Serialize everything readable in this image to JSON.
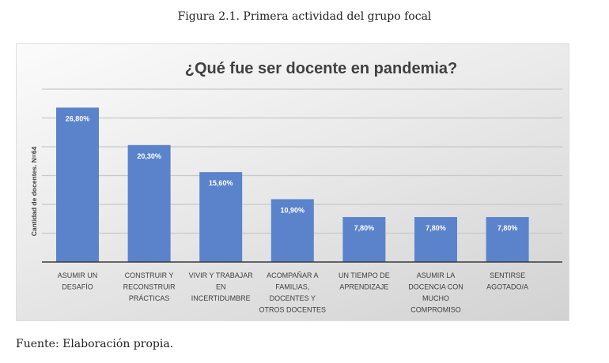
{
  "caption": "Figura 2.1. Primera actividad del grupo focal",
  "source": "Fuente: Elaboración propia.",
  "chart_data": {
    "type": "bar",
    "title": "¿Qué fue ser docente en pandemia?",
    "xlabel": "",
    "ylabel": "Cantidad de docentes. N=64",
    "ylim": [
      0,
      30
    ],
    "grid": true,
    "gridlines": [
      5,
      10,
      15,
      20,
      25,
      30
    ],
    "categories": [
      [
        "ASUMIR UN",
        "DESAFÍO"
      ],
      [
        "CONSTRUIR Y",
        "RECONSTRUIR",
        "PRÁCTICAS"
      ],
      [
        "VIVIR Y TRABAJAR",
        "EN",
        "INCERTIDUMBRE"
      ],
      [
        "ACOMPAÑAR A",
        "FAMILIAS,",
        "DOCENTES Y",
        "OTROS DOCENTES"
      ],
      [
        "UN TIEMPO DE",
        "APRENDIZAJE"
      ],
      [
        "ASUMIR LA",
        "DOCENCIA CON",
        "MUCHO",
        "COMPROMISO"
      ],
      [
        "SENTIRSE",
        "AGOTADO/A"
      ]
    ],
    "values": [
      26.8,
      20.3,
      15.6,
      10.9,
      7.8,
      7.8,
      7.8
    ],
    "labels": [
      "26,80%",
      "20,30%",
      "15,60%",
      "10,90%",
      "7,80%",
      "7,80%",
      "7,80%"
    ],
    "bar_color": "#5b83cc"
  }
}
